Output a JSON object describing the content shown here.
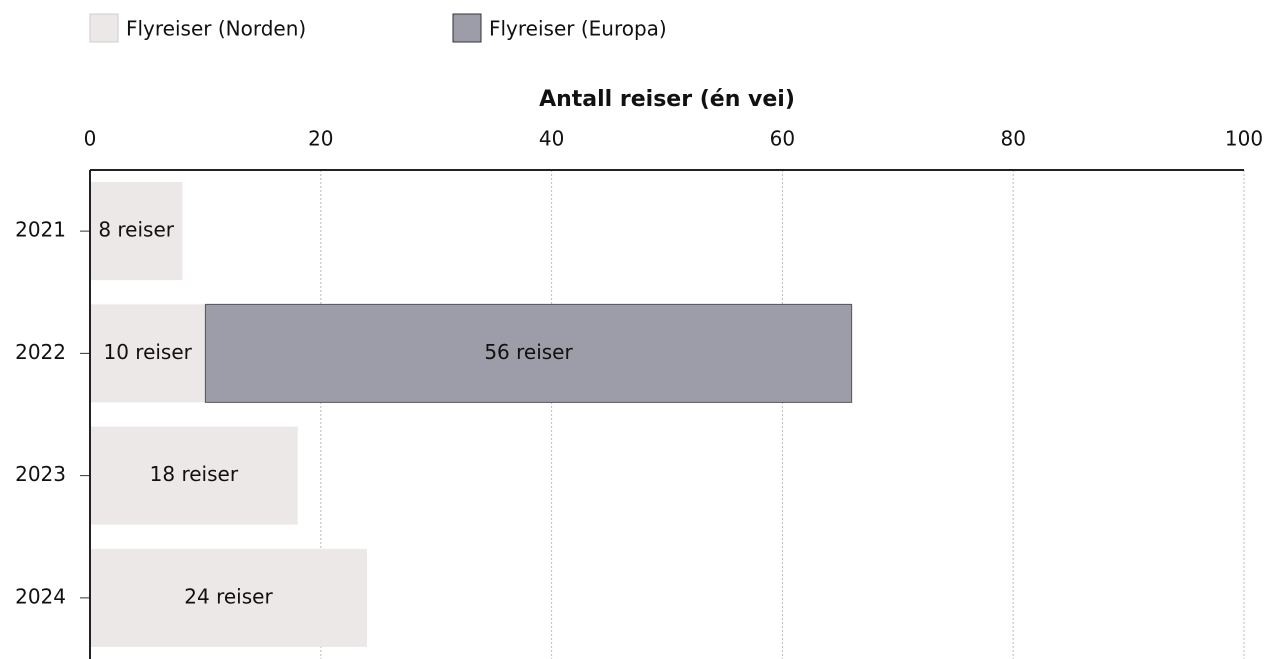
{
  "chart_data": {
    "type": "bar",
    "orientation": "horizontal",
    "stacked": true,
    "xlabel": "Antall reiser (én vei)",
    "categories": [
      "2021",
      "2022",
      "2023",
      "2024"
    ],
    "series": [
      {
        "name": "Flyreiser (Norden)",
        "color": "#ece8e7",
        "values": [
          8,
          10,
          18,
          24
        ],
        "value_labels": [
          "8 reiser",
          "10 reiser",
          "18 reiser",
          "24 reiser"
        ]
      },
      {
        "name": "Flyreiser (Europa)",
        "color": "#9d9da9",
        "values": [
          null,
          56,
          null,
          null
        ],
        "value_labels": [
          null,
          "56 reiser",
          null,
          null
        ]
      }
    ],
    "xlim": [
      0,
      100
    ],
    "xticks": [
      0,
      20,
      40,
      60,
      80,
      100
    ],
    "grid": true
  }
}
